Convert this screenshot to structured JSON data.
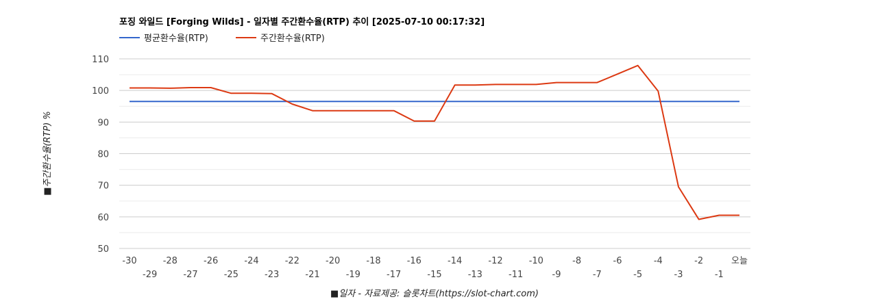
{
  "chart_data": {
    "type": "line",
    "title": "포징 와일드 [Forging Wilds] - 일자별 주간환수율(RTP) 추이 [2025-07-10 00:17:32]",
    "xlabel": "■일자 - 자료제공: 슬롯차트(https://slot-chart.com)",
    "ylabel": "■주간환수율(RTP) %",
    "ylim": [
      50,
      110
    ],
    "yticks": [
      50,
      60,
      70,
      80,
      90,
      100,
      110
    ],
    "grid": true,
    "legend_position": "top-left",
    "categories": [
      "-30",
      "-29",
      "-28",
      "-27",
      "-26",
      "-25",
      "-24",
      "-23",
      "-22",
      "-21",
      "-20",
      "-19",
      "-18",
      "-17",
      "-16",
      "-15",
      "-14",
      "-13",
      "-12",
      "-11",
      "-10",
      "-9",
      "-8",
      "-7",
      "-6",
      "-5",
      "-4",
      "-3",
      "-2",
      "-1",
      "오늘"
    ],
    "series": [
      {
        "name": "평균환수율(RTP)",
        "color": "#3366cc",
        "values": [
          96.5,
          96.5,
          96.5,
          96.5,
          96.5,
          96.5,
          96.5,
          96.5,
          96.5,
          96.5,
          96.5,
          96.5,
          96.5,
          96.5,
          96.5,
          96.5,
          96.5,
          96.5,
          96.5,
          96.5,
          96.5,
          96.5,
          96.5,
          96.5,
          96.5,
          96.5,
          96.5,
          96.5,
          96.5,
          96.5,
          96.5
        ]
      },
      {
        "name": "주간환수율(RTP)",
        "color": "#dc3912",
        "values": [
          100.8,
          100.8,
          100.7,
          100.9,
          100.9,
          99.1,
          99.1,
          99.0,
          95.7,
          93.6,
          93.6,
          93.6,
          93.6,
          93.6,
          90.3,
          90.3,
          101.7,
          101.7,
          101.9,
          101.9,
          101.9,
          102.5,
          102.5,
          102.5,
          105.2,
          107.9,
          99.8,
          69.5,
          59.2,
          60.5,
          60.5
        ]
      }
    ]
  }
}
